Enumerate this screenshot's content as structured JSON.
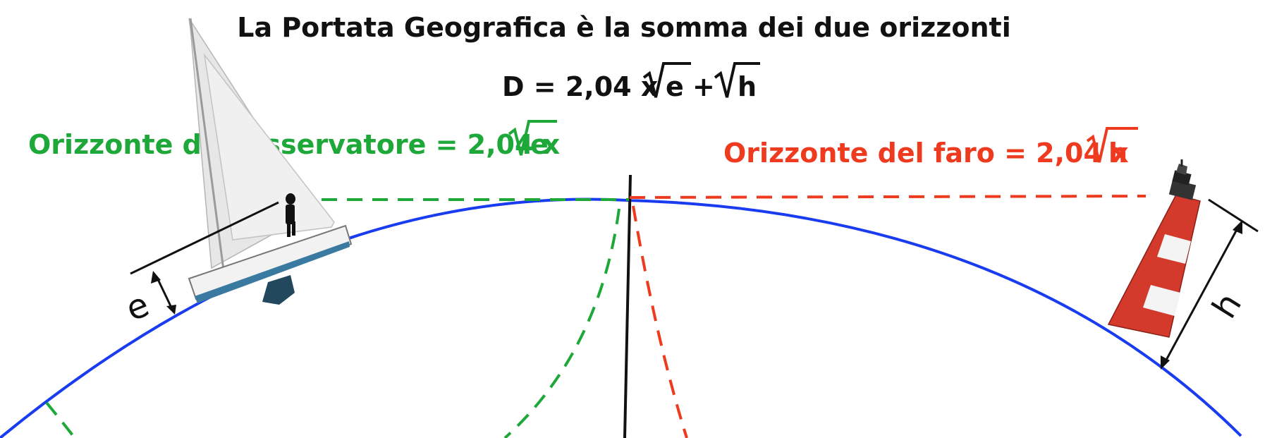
{
  "title": "La Portata Geografica è la somma dei due orizzonti",
  "formula": {
    "prefix": "D = 2,04 x",
    "root_e": "e",
    "plus": "+",
    "root_h": "h"
  },
  "observer_horizon": {
    "text": "Orizzonte dell'osservatore = 2,04 x",
    "root": "e"
  },
  "lighthouse_horizon": {
    "text": "Orizzonte del faro = 2,04 x",
    "root": "h"
  },
  "labels": {
    "observer_height": "e",
    "lighthouse_height": "h"
  },
  "colors": {
    "earth_curve": "#1a3cf0",
    "observer": "#1fa83a",
    "lighthouse": "#ee3b1f",
    "text": "#111111"
  }
}
